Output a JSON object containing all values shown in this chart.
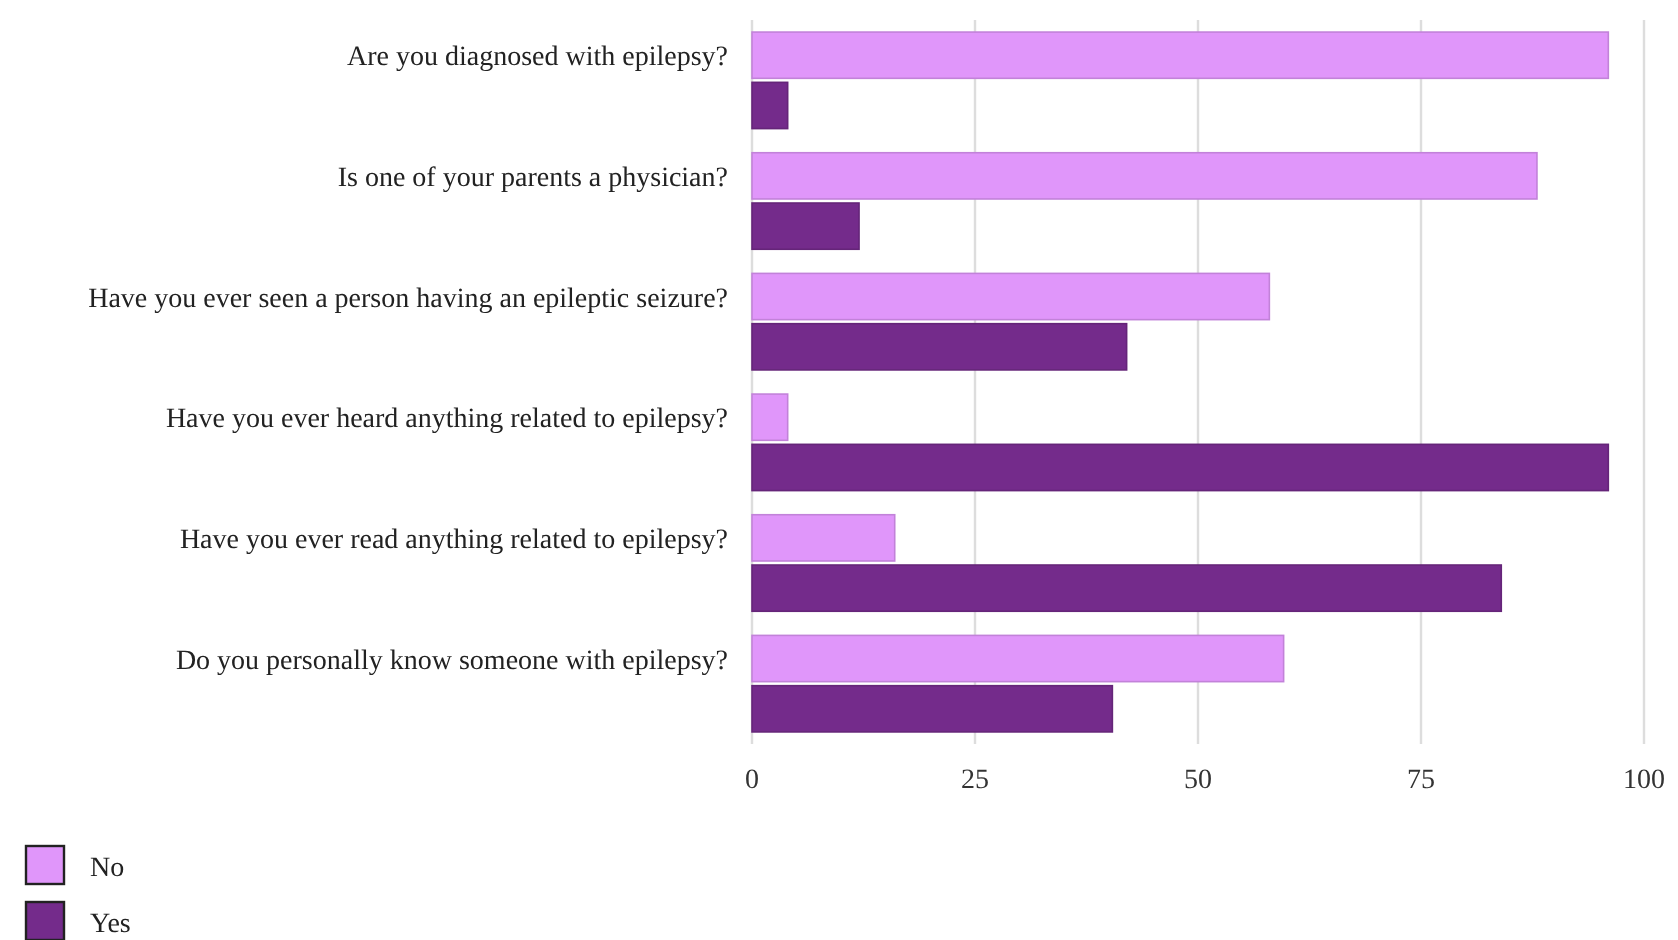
{
  "chart_data": {
    "type": "bar",
    "orientation": "horizontal",
    "categories": [
      "Are you diagnosed with epilepsy?",
      "Is one of your parents a physician?",
      "Have you ever seen a person having an epileptic seizure?",
      "Have you ever heard anything related to epilepsy?",
      "Have you ever read anything related to epilepsy?",
      "Do you personally know someone with epilepsy?"
    ],
    "series": [
      {
        "name": "No",
        "color": "#e096fa",
        "values": [
          96,
          88,
          58,
          4,
          16,
          59.6
        ]
      },
      {
        "name": "Yes",
        "color": "#742b8b",
        "values": [
          4,
          12,
          42,
          96,
          84,
          40.4
        ]
      }
    ],
    "xlim": [
      0,
      100
    ],
    "xticks": [
      0,
      25,
      50,
      75,
      100
    ],
    "grid": "x",
    "legend": "bottom left"
  }
}
